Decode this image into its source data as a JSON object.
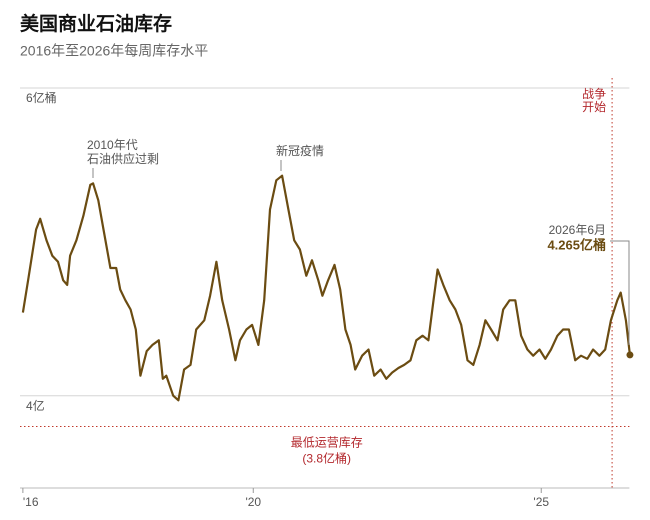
{
  "chart_data": {
    "type": "line",
    "title": "美国商业石油库存",
    "subtitle": "2016年至2026年每周库存水平",
    "x": [
      2016.0,
      2016.09,
      2016.23,
      2016.3,
      2016.41,
      2016.51,
      2016.61,
      2016.7,
      2016.77,
      2016.82,
      2016.93,
      2017.05,
      2017.17,
      2017.22,
      2017.31,
      2017.4,
      2017.52,
      2017.62,
      2017.69,
      2017.78,
      2017.87,
      2017.96,
      2018.04,
      2018.15,
      2018.25,
      2018.36,
      2018.43,
      2018.49,
      2018.61,
      2018.7,
      2018.8,
      2018.91,
      2019.01,
      2019.15,
      2019.25,
      2019.36,
      2019.46,
      2019.58,
      2019.69,
      2019.77,
      2019.88,
      2019.98,
      2020.09,
      2020.19,
      2020.29,
      2020.4,
      2020.5,
      2020.61,
      2020.71,
      2020.81,
      2020.92,
      2021.02,
      2021.13,
      2021.2,
      2021.3,
      2021.41,
      2021.51,
      2021.6,
      2021.69,
      2021.77,
      2021.89,
      2022.0,
      2022.1,
      2022.21,
      2022.31,
      2022.41,
      2022.52,
      2022.62,
      2022.73,
      2022.83,
      2022.94,
      2023.04,
      2023.13,
      2023.2,
      2023.3,
      2023.41,
      2023.51,
      2023.61,
      2023.72,
      2023.82,
      2023.93,
      2024.03,
      2024.13,
      2024.24,
      2024.34,
      2024.45,
      2024.55,
      2024.65,
      2024.76,
      2024.86,
      2024.97,
      2025.07,
      2025.17,
      2025.28,
      2025.38,
      2025.48,
      2025.59,
      2025.69,
      2025.8,
      2025.9,
      2026.01,
      2026.11,
      2026.21,
      2026.32,
      2026.38,
      2026.47,
      2026.54
    ],
    "values": [
      4.54,
      4.75,
      5.08,
      5.15,
      5.01,
      4.91,
      4.87,
      4.75,
      4.72,
      4.91,
      5.01,
      5.17,
      5.37,
      5.38,
      5.27,
      5.08,
      4.83,
      4.83,
      4.69,
      4.62,
      4.56,
      4.43,
      4.13,
      4.29,
      4.33,
      4.36,
      4.11,
      4.13,
      4.0,
      3.97,
      4.17,
      4.2,
      4.43,
      4.49,
      4.65,
      4.87,
      4.62,
      4.43,
      4.23,
      4.36,
      4.43,
      4.46,
      4.33,
      4.62,
      5.21,
      5.4,
      5.43,
      5.21,
      5.01,
      4.95,
      4.78,
      4.88,
      4.75,
      4.65,
      4.75,
      4.85,
      4.69,
      4.43,
      4.33,
      4.17,
      4.26,
      4.3,
      4.13,
      4.17,
      4.11,
      4.15,
      4.18,
      4.2,
      4.23,
      4.36,
      4.39,
      4.36,
      4.62,
      4.82,
      4.72,
      4.62,
      4.56,
      4.46,
      4.23,
      4.2,
      4.33,
      4.49,
      4.43,
      4.36,
      4.56,
      4.62,
      4.62,
      4.39,
      4.3,
      4.26,
      4.3,
      4.24,
      4.3,
      4.39,
      4.43,
      4.43,
      4.23,
      4.26,
      4.24,
      4.3,
      4.26,
      4.3,
      4.49,
      4.62,
      4.67,
      4.49,
      4.265
    ],
    "color": "#6b4c12",
    "xlim": [
      2015.95,
      2026.6
    ],
    "xticks": [
      {
        "value": 2016,
        "label": "'16"
      },
      {
        "value": 2020,
        "label": "'20"
      },
      {
        "value": 2025,
        "label": "'25"
      }
    ],
    "ylim": [
      3.4,
      6.0
    ],
    "yticks": [
      {
        "value": 4,
        "label": "4亿"
      },
      {
        "value": 6,
        "label": "6亿桶"
      }
    ],
    "grid": true,
    "annotations": [
      {
        "lines": [
          "2010年代",
          "石油供应过剩"
        ]
      },
      {
        "lines": [
          "新冠疫情"
        ]
      },
      {
        "lines": [
          "2026年6月",
          "4.265亿桶"
        ]
      }
    ],
    "reference_lines": [
      {
        "axis": "y",
        "value": 3.8,
        "lines": [
          "最低运营库存",
          "(3.8亿桶)"
        ]
      },
      {
        "axis": "x",
        "value": 2026.23,
        "lines": [
          "战争",
          "开始"
        ]
      }
    ]
  }
}
